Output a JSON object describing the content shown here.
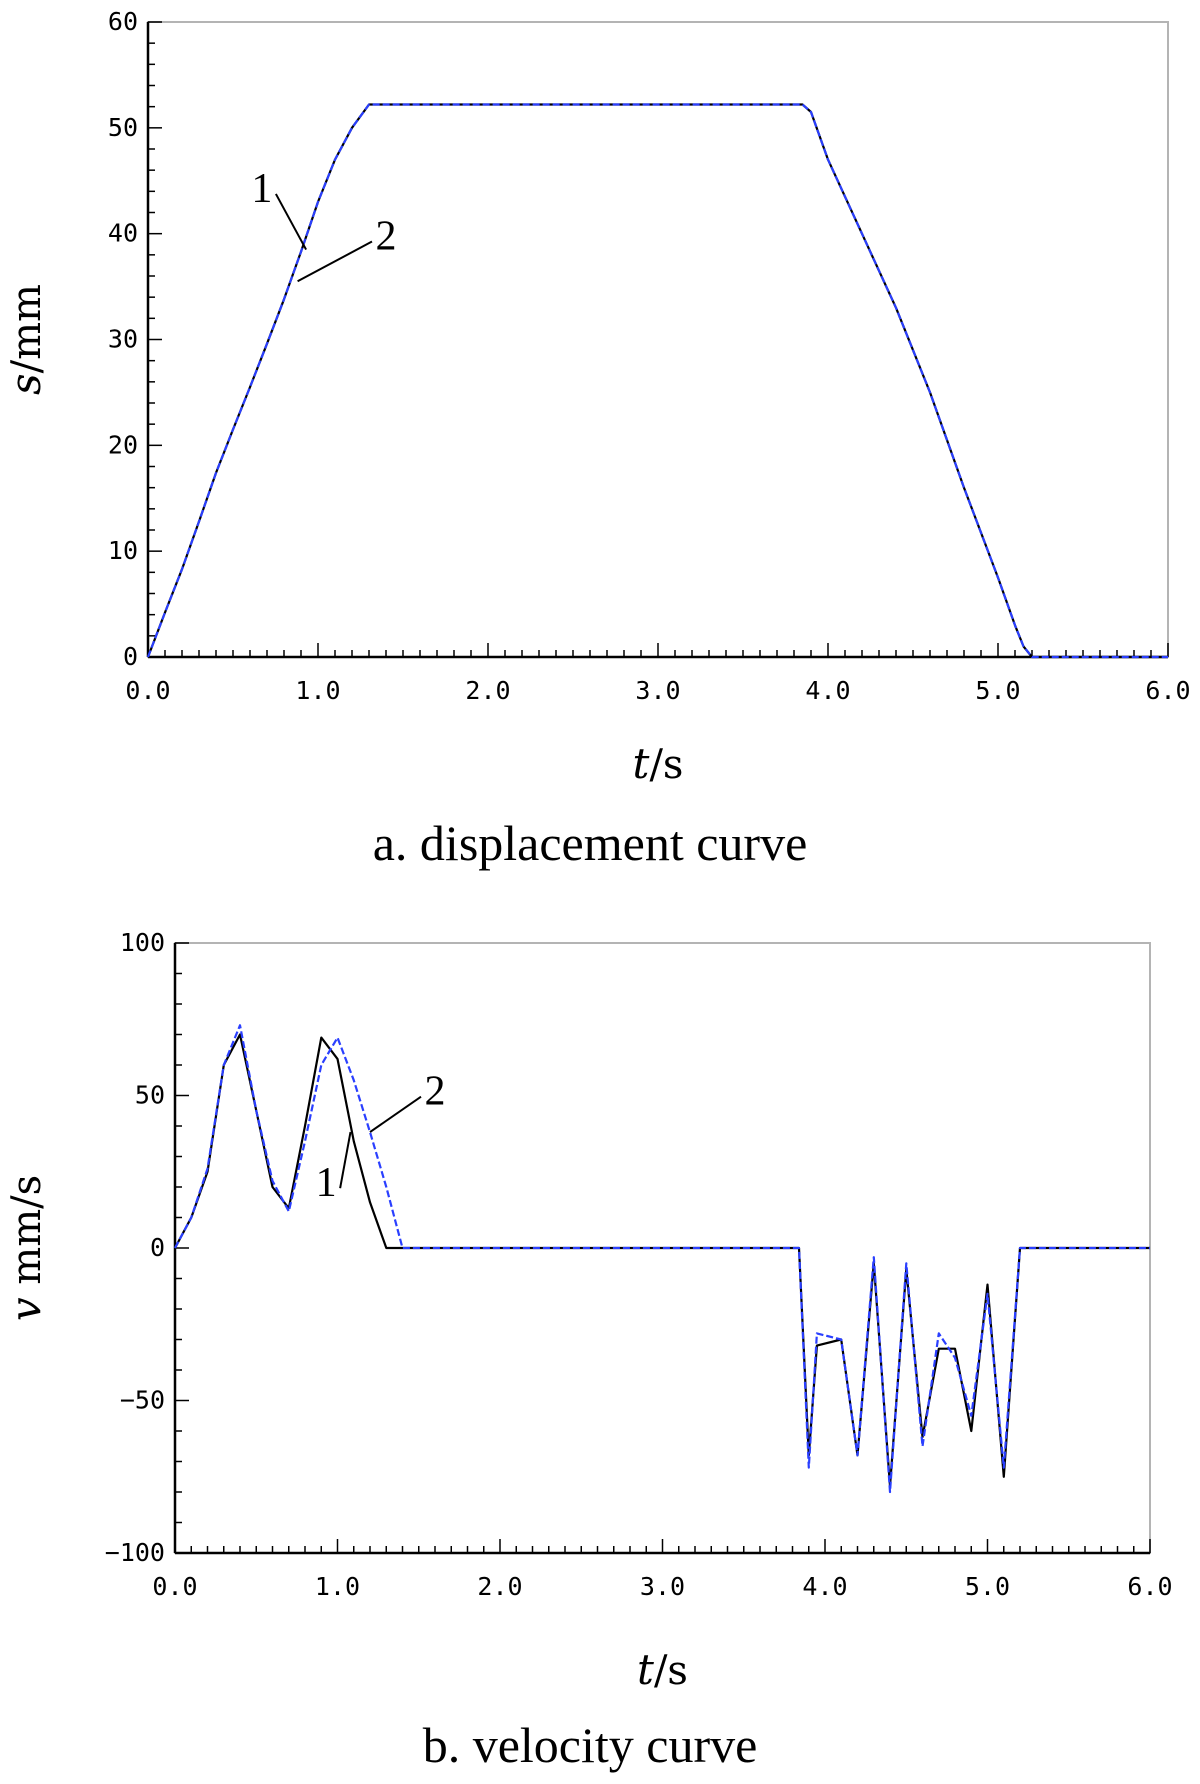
{
  "chart_data": [
    {
      "type": "line",
      "caption": "a. displacement curve",
      "xlabel_var": "t",
      "xlabel_unit": "/s",
      "ylabel_var": "s",
      "ylabel_unit": "/mm",
      "xlim": [
        0,
        6
      ],
      "ylim": [
        0,
        60
      ],
      "xticks": [
        0,
        1,
        2,
        3,
        4,
        5,
        6
      ],
      "xtick_labels": [
        "0.0",
        "1.0",
        "2.0",
        "3.0",
        "4.0",
        "5.0",
        "6.0"
      ],
      "yticks": [
        0,
        10,
        20,
        30,
        40,
        50,
        60
      ],
      "ytick_labels": [
        "0",
        "10",
        "20",
        "30",
        "40",
        "50",
        "60"
      ],
      "grid": false,
      "series": [
        {
          "name": "1",
          "color": "#000000",
          "dash": false,
          "points": [
            [
              0,
              0
            ],
            [
              0.1,
              4.2
            ],
            [
              0.2,
              8.3
            ],
            [
              0.3,
              12.8
            ],
            [
              0.4,
              17.4
            ],
            [
              0.5,
              21.5
            ],
            [
              0.6,
              25.5
            ],
            [
              0.7,
              29.6
            ],
            [
              0.8,
              33.8
            ],
            [
              0.9,
              38.3
            ],
            [
              1.0,
              43.0
            ],
            [
              1.1,
              47.0
            ],
            [
              1.2,
              50.0
            ],
            [
              1.3,
              52.2
            ],
            [
              3.85,
              52.2
            ],
            [
              3.9,
              51.5
            ],
            [
              4.0,
              47.0
            ],
            [
              4.2,
              40.0
            ],
            [
              4.4,
              33.0
            ],
            [
              4.6,
              25.0
            ],
            [
              4.8,
              16.0
            ],
            [
              5.0,
              7.5
            ],
            [
              5.1,
              3.0
            ],
            [
              5.15,
              1.0
            ],
            [
              5.2,
              0
            ],
            [
              6.0,
              0
            ]
          ]
        },
        {
          "name": "2",
          "color": "#2a3fff",
          "dash": true,
          "points": [
            [
              0,
              0
            ],
            [
              0.1,
              4.2
            ],
            [
              0.2,
              8.3
            ],
            [
              0.3,
              12.8
            ],
            [
              0.4,
              17.4
            ],
            [
              0.5,
              21.5
            ],
            [
              0.6,
              25.5
            ],
            [
              0.7,
              29.6
            ],
            [
              0.8,
              33.8
            ],
            [
              0.9,
              38.3
            ],
            [
              1.0,
              43.0
            ],
            [
              1.1,
              47.0
            ],
            [
              1.2,
              50.0
            ],
            [
              1.3,
              52.2
            ],
            [
              3.85,
              52.2
            ],
            [
              3.9,
              51.5
            ],
            [
              4.0,
              47.0
            ],
            [
              4.2,
              40.0
            ],
            [
              4.4,
              33.0
            ],
            [
              4.6,
              25.0
            ],
            [
              4.8,
              16.0
            ],
            [
              5.0,
              7.5
            ],
            [
              5.1,
              3.0
            ],
            [
              5.15,
              1.0
            ],
            [
              5.2,
              0
            ],
            [
              6.0,
              0
            ]
          ]
        }
      ],
      "annotations": [
        {
          "text": "1",
          "series": "1",
          "label_x": 0.67,
          "label_y": 43,
          "point_x": 0.93,
          "point_y": 38.5
        },
        {
          "text": "2",
          "series": "2",
          "label_x": 1.4,
          "label_y": 38.5,
          "point_x": 0.88,
          "point_y": 35.5
        }
      ]
    },
    {
      "type": "line",
      "caption": "b. velocity curve",
      "xlabel_var": "t",
      "xlabel_unit": "/s",
      "ylabel_var": "v",
      "ylabel_unit": " mm/s",
      "xlim": [
        0,
        6
      ],
      "ylim": [
        -100,
        100
      ],
      "xticks": [
        0,
        1,
        2,
        3,
        4,
        5,
        6
      ],
      "xtick_labels": [
        "0.0",
        "1.0",
        "2.0",
        "3.0",
        "4.0",
        "5.0",
        "6.0"
      ],
      "yticks": [
        -100,
        -50,
        0,
        50,
        100
      ],
      "ytick_labels": [
        "−100",
        "−50",
        "0",
        "50",
        "100"
      ],
      "grid": false,
      "series": [
        {
          "name": "1",
          "color": "#000000",
          "dash": false,
          "points": [
            [
              0,
              0
            ],
            [
              0.1,
              10
            ],
            [
              0.2,
              25
            ],
            [
              0.3,
              60
            ],
            [
              0.4,
              70
            ],
            [
              0.5,
              45
            ],
            [
              0.6,
              20
            ],
            [
              0.7,
              13
            ],
            [
              0.8,
              40
            ],
            [
              0.9,
              69
            ],
            [
              1.0,
              62
            ],
            [
              1.1,
              35
            ],
            [
              1.2,
              15
            ],
            [
              1.3,
              0
            ],
            [
              3.84,
              0
            ],
            [
              3.9,
              -68
            ],
            [
              3.95,
              -32
            ],
            [
              4.1,
              -30
            ],
            [
              4.2,
              -68
            ],
            [
              4.3,
              -5
            ],
            [
              4.4,
              -78
            ],
            [
              4.5,
              -7
            ],
            [
              4.6,
              -62
            ],
            [
              4.7,
              -33
            ],
            [
              4.8,
              -33
            ],
            [
              4.9,
              -60
            ],
            [
              5.0,
              -12
            ],
            [
              5.1,
              -75
            ],
            [
              5.2,
              0
            ],
            [
              6.0,
              0
            ]
          ]
        },
        {
          "name": "2",
          "color": "#2a3fff",
          "dash": true,
          "points": [
            [
              0,
              0
            ],
            [
              0.1,
              10
            ],
            [
              0.2,
              26
            ],
            [
              0.3,
              60
            ],
            [
              0.4,
              73
            ],
            [
              0.5,
              45
            ],
            [
              0.6,
              22
            ],
            [
              0.7,
              12
            ],
            [
              0.8,
              35
            ],
            [
              0.9,
              60
            ],
            [
              1.0,
              69
            ],
            [
              1.1,
              55
            ],
            [
              1.2,
              38
            ],
            [
              1.3,
              20
            ],
            [
              1.4,
              0
            ],
            [
              3.84,
              0
            ],
            [
              3.9,
              -72
            ],
            [
              3.95,
              -28
            ],
            [
              4.1,
              -30
            ],
            [
              4.2,
              -68
            ],
            [
              4.3,
              -3
            ],
            [
              4.4,
              -80
            ],
            [
              4.5,
              -5
            ],
            [
              4.6,
              -65
            ],
            [
              4.7,
              -28
            ],
            [
              4.8,
              -36
            ],
            [
              4.9,
              -55
            ],
            [
              5.0,
              -15
            ],
            [
              5.1,
              -72
            ],
            [
              5.2,
              0
            ],
            [
              6.0,
              0
            ]
          ]
        }
      ],
      "annotations": [
        {
          "text": "1",
          "series": "1",
          "label_x": 0.93,
          "label_y": 17,
          "point_x": 1.08,
          "point_y": 38
        },
        {
          "text": "2",
          "series": "2",
          "label_x": 1.6,
          "label_y": 47,
          "point_x": 1.2,
          "point_y": 38
        }
      ]
    }
  ]
}
